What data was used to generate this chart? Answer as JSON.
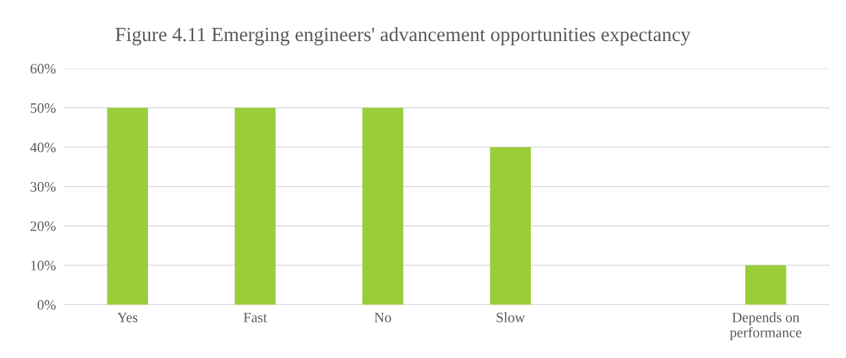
{
  "chart_data": {
    "type": "bar",
    "title": "Figure 4.11 Emerging engineers' advancement opportunities expectancy",
    "categories": [
      "Yes",
      "Fast",
      "No",
      "Slow",
      null,
      "Depends on\nperformance"
    ],
    "values": [
      50,
      50,
      50,
      40,
      null,
      10
    ],
    "color": "#9acd3a",
    "ylim": [
      0,
      60
    ],
    "yticks": [
      {
        "value": 0,
        "label": "0%"
      },
      {
        "value": 10,
        "label": "10%"
      },
      {
        "value": 20,
        "label": "20%"
      },
      {
        "value": 30,
        "label": "30%"
      },
      {
        "value": 40,
        "label": "40%"
      },
      {
        "value": 50,
        "label": "50%"
      },
      {
        "value": 60,
        "label": "60%"
      }
    ],
    "grid": "y",
    "legend": false
  }
}
